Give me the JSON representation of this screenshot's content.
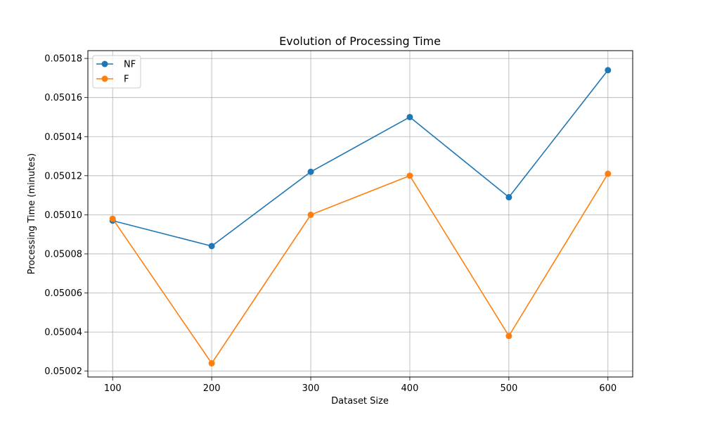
{
  "chart_data": {
    "type": "line",
    "title": "Evolution of Processing Time",
    "xlabel": "Dataset Size",
    "ylabel": "Processing Time (minutes)",
    "x": [
      100,
      200,
      300,
      400,
      500,
      600
    ],
    "xticks": [
      "100",
      "200",
      "300",
      "400",
      "500",
      "600"
    ],
    "xlim": [
      75,
      625
    ],
    "ylim": [
      0.050017,
      0.050184
    ],
    "yticks": [
      "0.05002",
      "0.05004",
      "0.05006",
      "0.05008",
      "0.05010",
      "0.05012",
      "0.05014",
      "0.05016",
      "0.05018"
    ],
    "ytick_values": [
      0.05002,
      0.05004,
      0.05006,
      0.05008,
      0.0501,
      0.05012,
      0.05014,
      0.05016,
      0.05018
    ],
    "grid": true,
    "legend_position": "top-left",
    "series": [
      {
        "name": "NF",
        "color": "#1f77b4",
        "values": [
          0.050097,
          0.050084,
          0.050122,
          0.05015,
          0.050109,
          0.050174
        ]
      },
      {
        "name": "F",
        "color": "#ff7f0e",
        "values": [
          0.050098,
          0.050024,
          0.0501,
          0.05012,
          0.050038,
          0.050121
        ]
      }
    ]
  }
}
